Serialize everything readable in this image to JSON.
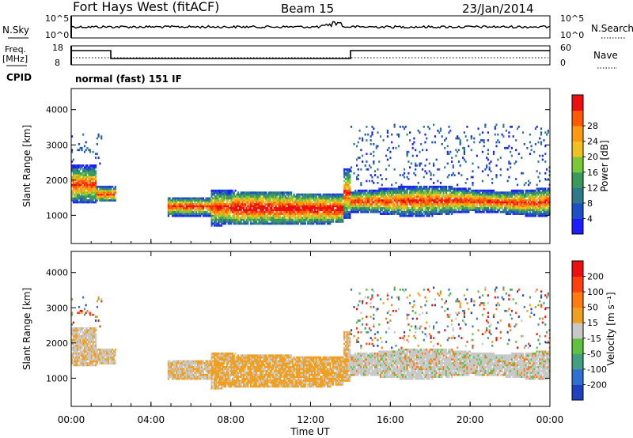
{
  "header": {
    "station": "Fort Hays West (fitACF)",
    "beam": "Beam 15",
    "date": "23/Jan/2014"
  },
  "status_panels": {
    "nsky_label": "N.Sky",
    "nsearch_label": "N.Search",
    "nsky_ticks": [
      "10^5",
      "10^0"
    ],
    "nsearch_ticks": [
      "10^5",
      "10^0"
    ],
    "freq_label_top": "Freq.",
    "freq_label_bottom": "[MHz]",
    "freq_ticks": [
      "18",
      "8"
    ],
    "nave_label": "Nave",
    "nave_ticks": [
      "60",
      "0"
    ],
    "cpid_label": "CPID",
    "cpid_text": "normal (fast) 151 IF"
  },
  "chart_data": [
    {
      "type": "heatmap",
      "name": "power",
      "ylabel": "Slant Range [km]",
      "yticks": [
        1000,
        2000,
        3000,
        4000
      ],
      "ylim": [
        200,
        4600
      ],
      "xlim": [
        0,
        24
      ],
      "colorbar": {
        "label": "Power [dB]",
        "ticks": [
          "4",
          "8",
          "12",
          "16",
          "20",
          "24",
          "28"
        ],
        "colors": [
          "#1c1cff",
          "#1e4fc8",
          "#2f7a8a",
          "#3a9a5c",
          "#78c83a",
          "#f0c020",
          "#ff9a10",
          "#ff5a00",
          "#ee1010"
        ]
      }
    },
    {
      "type": "heatmap",
      "name": "velocity",
      "ylabel": "Slant Range [km]",
      "yticks": [
        1000,
        2000,
        3000,
        4000
      ],
      "ylim": [
        200,
        4600
      ],
      "xlim": [
        0,
        24
      ],
      "xlabel": "Time UT",
      "xticks": [
        "00:00",
        "04:00",
        "08:00",
        "12:00",
        "16:00",
        "20:00",
        "00:00"
      ],
      "colorbar": {
        "label": "Velocity [m s⁻¹]",
        "ticks": [
          "200",
          "100",
          "50",
          "15",
          "-15",
          "-50",
          "-100",
          "-200"
        ],
        "colors": [
          "#2040c0",
          "#3070d0",
          "#40a080",
          "#60c040",
          "#c8c8c8",
          "#f0a020",
          "#ff7a10",
          "#ff4010",
          "#ee1010"
        ]
      }
    }
  ]
}
